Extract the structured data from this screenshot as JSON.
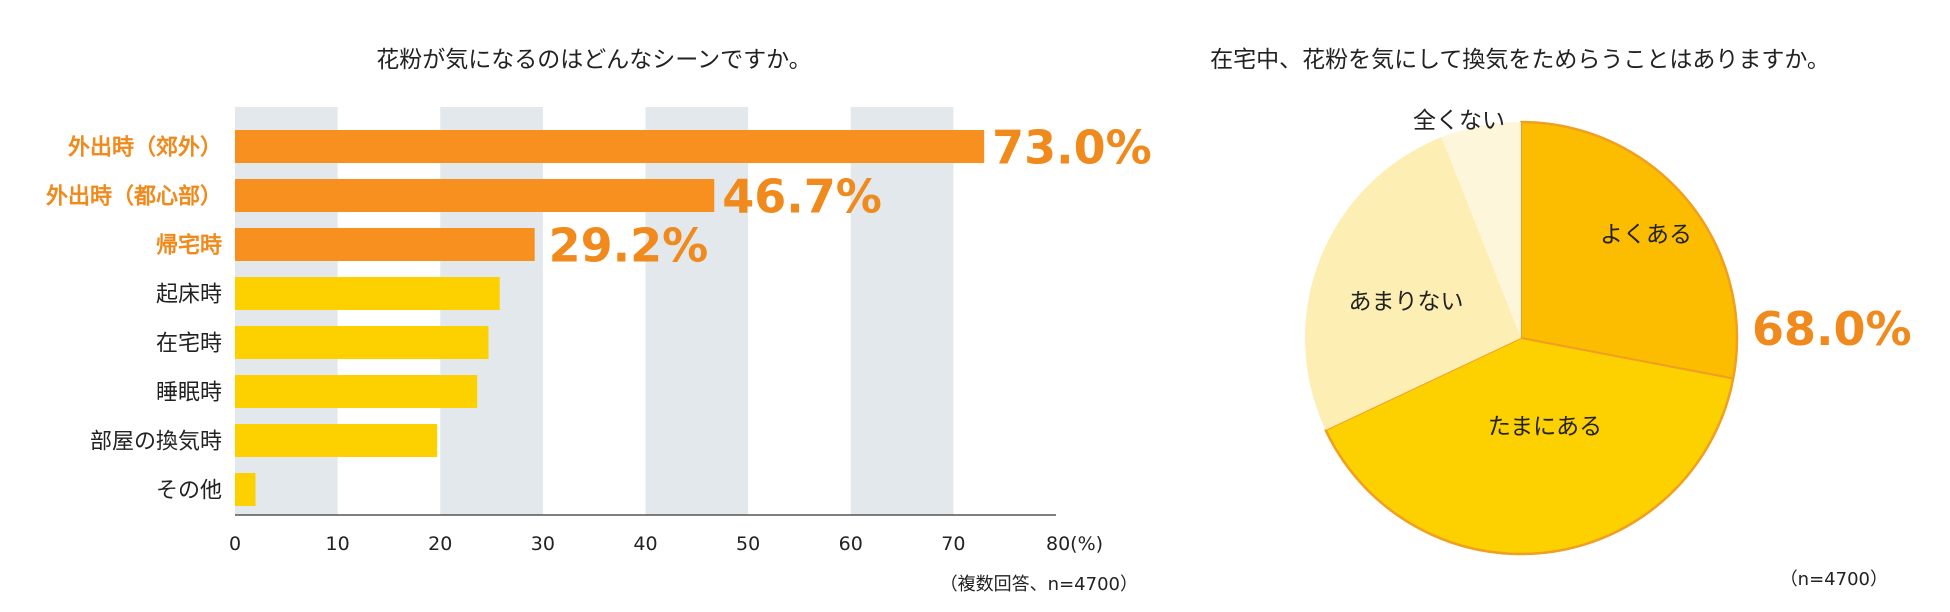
{
  "chart_data": [
    {
      "type": "bar",
      "orientation": "horizontal",
      "title": "花粉が気になるのはどんなシーンですか。",
      "categories": [
        "外出時（郊外）",
        "外出時（都心部）",
        "帰宅時",
        "起床時",
        "在宅時",
        "睡眠時",
        "部屋の換気時",
        "その他"
      ],
      "values": [
        73.0,
        46.7,
        29.2,
        25.8,
        24.7,
        23.6,
        19.7,
        2.0
      ],
      "highlighted": [
        true,
        true,
        true,
        false,
        false,
        false,
        false,
        false
      ],
      "data_labels": [
        "73.0%",
        "46.7%",
        "29.2%",
        "",
        "",
        "",
        "",
        ""
      ],
      "x_ticks": [
        "0",
        "10",
        "20",
        "30",
        "40",
        "50",
        "60",
        "70",
        "80(%)"
      ],
      "xlim": [
        0,
        80
      ],
      "note": "（複数回答、n=4700）",
      "colors": {
        "highlight": "#f7901e",
        "normal": "#fdd000",
        "band": "#e2e8ec",
        "axis": "#555555"
      }
    },
    {
      "type": "pie",
      "title": "在宅中、花粉を気にして換気をためらうことはありますか。",
      "slices": [
        {
          "label": "よくある",
          "value": 28.0,
          "color": "#fcbd00"
        },
        {
          "label": "たまにある",
          "value": 40.0,
          "color": "#fdd000"
        },
        {
          "label": "あまりない",
          "value": 26.0,
          "color": "#fdefb4"
        },
        {
          "label": "全くない",
          "value": 6.0,
          "color": "#fef6da"
        }
      ],
      "callout": "68.0%",
      "note": "（n=4700）",
      "colors": {
        "callout": "#f08a1c",
        "edge": "#f0a020"
      }
    }
  ]
}
